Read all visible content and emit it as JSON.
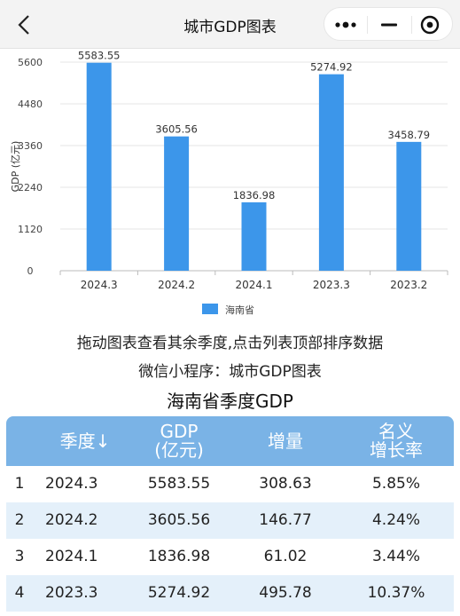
{
  "nav": {
    "title": "城市GDP图表"
  },
  "chart_data": {
    "type": "bar",
    "categories": [
      "2024.3",
      "2024.2",
      "2024.1",
      "2023.3",
      "2023.2"
    ],
    "series": [
      {
        "name": "海南省",
        "values": [
          5583.55,
          3605.56,
          1836.98,
          5274.92,
          3458.79
        ]
      }
    ],
    "value_labels": [
      "5583.55",
      "3605.56",
      "1836.98",
      "5274.92",
      "3458.79"
    ],
    "ylabel": "GDP (亿元)",
    "yticks": [
      "0",
      "1120",
      "2240",
      "3360",
      "4480",
      "5600"
    ],
    "ylim": [
      0,
      5600
    ],
    "grid": true,
    "legend": "bottom",
    "color": "#3c96ea"
  },
  "hint_line1": "拖动图表查看其余季度,点击列表顶部排序数据",
  "hint_line2": "微信小程序：城市GDP图表",
  "table": {
    "title": "海南省季度GDP",
    "headers": {
      "quarter": "季度↓",
      "gdp_line1": "GDP",
      "gdp_line2": "(亿元)",
      "increase": "增量",
      "rate_line1": "名义",
      "rate_line2": "增长率"
    },
    "rows": [
      {
        "rank": "1",
        "quarter": "2024.3",
        "gdp": "5583.55",
        "increase": "308.63",
        "rate": "5.85%"
      },
      {
        "rank": "2",
        "quarter": "2024.2",
        "gdp": "3605.56",
        "increase": "146.77",
        "rate": "4.24%"
      },
      {
        "rank": "3",
        "quarter": "2024.1",
        "gdp": "1836.98",
        "increase": "61.02",
        "rate": "3.44%"
      },
      {
        "rank": "4",
        "quarter": "2023.3",
        "gdp": "5274.92",
        "increase": "495.78",
        "rate": "10.37%"
      }
    ]
  }
}
